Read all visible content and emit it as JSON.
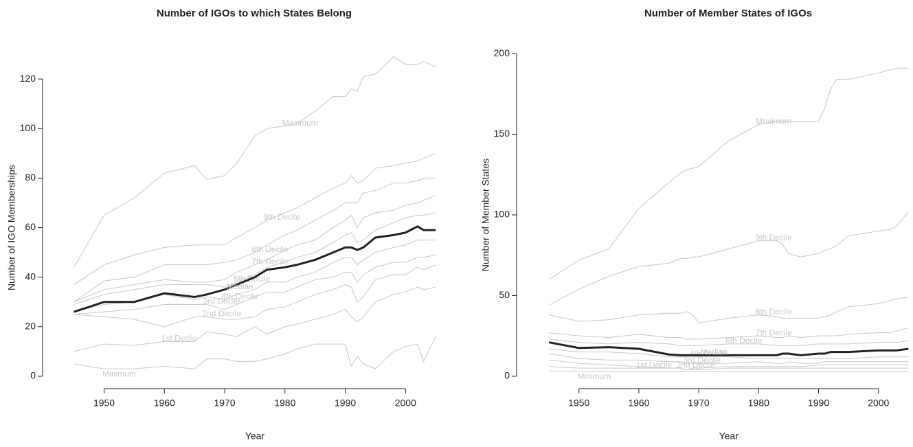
{
  "chart_data": [
    {
      "type": "line",
      "title": "Number of IGOs to which States Belong",
      "x_label": "Year",
      "y_label": "Number of IGO Memberships",
      "x": [
        1945,
        1950,
        1955,
        1960,
        1965,
        1967,
        1970,
        1972,
        1975,
        1977,
        1980,
        1982,
        1985,
        1988,
        1990,
        1991,
        1992,
        1993,
        1995,
        1998,
        2000,
        2002,
        2003,
        2005
      ],
      "xlim": [
        1939.8,
        2006.8
      ],
      "ylim": [
        -5,
        125.3
      ],
      "xticks": [
        1950,
        1960,
        1970,
        1980,
        1990,
        2000
      ],
      "yticks": [
        0,
        20,
        40,
        60,
        80,
        100,
        120
      ],
      "series": [
        {
          "name": "Minimum",
          "color": "#c8c8c8",
          "values": [
            5,
            3,
            3,
            4,
            3,
            7,
            7,
            6,
            6,
            7,
            9,
            11,
            13,
            13,
            13,
            4,
            8,
            5,
            3,
            10,
            12,
            13,
            6,
            16
          ]
        },
        {
          "name": "1st Decile",
          "color": "#c8c8c8",
          "values": [
            10,
            13,
            12.5,
            14,
            14,
            18,
            17,
            16,
            20,
            17,
            20,
            21,
            23,
            25,
            27,
            24,
            22,
            24,
            30,
            33,
            34,
            36,
            35,
            36
          ]
        },
        {
          "name": "2nd Decile",
          "color": "#c8c8c8",
          "values": [
            25,
            24,
            23,
            20,
            24,
            24,
            23,
            23,
            24,
            27,
            28,
            30,
            33,
            35,
            37,
            36,
            30,
            32,
            39,
            41,
            41,
            44,
            43,
            45
          ]
        },
        {
          "name": "3rd Decile",
          "color": "#c8c8c8",
          "values": [
            25,
            26,
            27,
            29,
            29,
            29,
            27,
            29,
            32,
            34,
            34,
            36,
            39,
            40,
            42,
            42,
            38,
            41,
            44,
            46,
            46,
            48,
            48,
            49
          ]
        },
        {
          "name": "4th Decile",
          "color": "#c8c8c8",
          "values": [
            26,
            29,
            30,
            33,
            31,
            32,
            31,
            33,
            35,
            38,
            38,
            40,
            42,
            46,
            48,
            48,
            45,
            47,
            50,
            52,
            53,
            55,
            55,
            55
          ]
        },
        {
          "name": "Median",
          "color": "#222222",
          "values": [
            26,
            30,
            30,
            33.5,
            32,
            33,
            35,
            37,
            40,
            43,
            44,
            45,
            47,
            50,
            52,
            52,
            51,
            52,
            56,
            57,
            58,
            60.5,
            59,
            59
          ]
        },
        {
          "name": "6th Decile",
          "color": "#c8c8c8",
          "values": [
            29,
            33,
            35,
            37,
            37,
            37,
            36,
            38,
            41,
            44,
            46,
            48,
            50,
            54,
            57,
            58,
            54,
            55,
            59,
            62,
            64,
            65,
            65,
            66
          ]
        },
        {
          "name": "7th Decile",
          "color": "#c8c8c8",
          "values": [
            30,
            35,
            37,
            39,
            38,
            38,
            39,
            42,
            45,
            47,
            51,
            53,
            55,
            60,
            63,
            65,
            60,
            64,
            66,
            67,
            69,
            70,
            71,
            73
          ]
        },
        {
          "name": "8th Decile",
          "color": "#c8c8c8",
          "values": [
            30,
            38.5,
            40,
            45,
            45,
            45,
            46,
            47,
            50,
            53,
            57,
            59,
            63,
            67,
            70,
            70,
            70,
            74,
            75,
            78,
            78,
            79,
            80,
            80
          ]
        },
        {
          "name": "9th Decile",
          "color": "#c8c8c8",
          "values": [
            37,
            45,
            49,
            52,
            53,
            53,
            53,
            56,
            60,
            63,
            66,
            68,
            72,
            76,
            78,
            81,
            78,
            79,
            84,
            85,
            86,
            87,
            88,
            90
          ]
        },
        {
          "name": "Maximum",
          "color": "#c8c8c8",
          "values": [
            44,
            65,
            72,
            82,
            85,
            79.5,
            81,
            86,
            97,
            100,
            101,
            102,
            107,
            113,
            113,
            116,
            115,
            121,
            122,
            129,
            126,
            126,
            127,
            125
          ]
        }
      ]
    },
    {
      "type": "line",
      "title": "Number of Member States of IGOs",
      "x_label": "Year",
      "y_label": "Number of Member States",
      "x": [
        1945,
        1950,
        1955,
        1960,
        1965,
        1967,
        1968,
        1969,
        1970,
        1975,
        1980,
        1983,
        1984,
        1985,
        1987,
        1990,
        1991,
        1992,
        1993,
        1995,
        2000,
        2002,
        2003,
        2005
      ],
      "xlim": [
        1939.6,
        2005.3
      ],
      "ylim": [
        -7.7,
        207.7
      ],
      "xticks": [
        1950,
        1960,
        1970,
        1980,
        1990,
        2000
      ],
      "yticks": [
        0,
        50,
        100,
        150,
        200
      ],
      "series": [
        {
          "name": "Minimum",
          "color": "#c8c8c8",
          "values": [
            3,
            3,
            3,
            3,
            3,
            3,
            3,
            3,
            3,
            3,
            3,
            3,
            3,
            3,
            3,
            3,
            3,
            3,
            3,
            3,
            3,
            3,
            3,
            3
          ]
        },
        {
          "name": "1st Decile",
          "color": "#c8c8c8",
          "values": [
            6,
            5,
            5,
            5,
            5,
            5,
            4,
            4,
            4,
            5,
            5,
            5,
            5,
            5,
            5,
            5,
            5,
            5,
            5,
            5,
            5,
            5,
            5,
            5
          ]
        },
        {
          "name": "2nd Decile",
          "color": "#c8c8c8",
          "values": [
            10,
            8,
            7,
            6,
            5,
            5,
            4,
            5,
            5,
            6,
            6,
            6,
            6,
            6,
            6,
            7,
            7,
            7,
            7,
            7,
            7,
            7,
            7,
            7
          ]
        },
        {
          "name": "3rd Decile",
          "color": "#c8c8c8",
          "values": [
            14,
            11,
            10,
            10,
            9,
            9,
            8,
            8,
            8,
            8,
            9,
            8,
            8,
            9,
            8,
            8,
            9,
            9,
            9,
            9,
            9,
            9,
            9,
            9
          ]
        },
        {
          "name": "4th Decile",
          "color": "#c8c8c8",
          "values": [
            17,
            15,
            15,
            14,
            12,
            12,
            12,
            12,
            12,
            12,
            11,
            11,
            11,
            11,
            11,
            11,
            11,
            11,
            11,
            11,
            12,
            12,
            12,
            12
          ]
        },
        {
          "name": "Median",
          "color": "#222222",
          "values": [
            21,
            17.5,
            18,
            17,
            13.5,
            13,
            13,
            13,
            13,
            13,
            13,
            13,
            14,
            14,
            13,
            14,
            14,
            15,
            15,
            15,
            16,
            16,
            16,
            17
          ]
        },
        {
          "name": "6th Decile",
          "color": "#c8c8c8",
          "values": [
            23,
            21,
            20,
            21,
            20,
            19,
            19,
            19,
            19,
            20,
            20,
            19,
            19,
            19,
            19,
            20,
            20,
            20,
            20,
            20,
            21,
            21,
            21,
            22
          ]
        },
        {
          "name": "7th Decile",
          "color": "#c8c8c8",
          "values": [
            27,
            25,
            24,
            26,
            24,
            24,
            23,
            23,
            23,
            24,
            25,
            24,
            24,
            25,
            24,
            25,
            25,
            25,
            25,
            26,
            27,
            27,
            28,
            30
          ]
        },
        {
          "name": "8th Decile",
          "color": "#c8c8c8",
          "values": [
            38,
            34,
            35,
            38,
            39,
            39,
            40,
            38,
            33,
            36,
            38,
            37,
            36,
            36,
            36,
            36,
            37,
            38,
            40,
            43,
            45,
            47,
            48,
            49
          ]
        },
        {
          "name": "9th Decile",
          "color": "#c8c8c8",
          "values": [
            44,
            54,
            62,
            68,
            70,
            73,
            73,
            74,
            74,
            79,
            84,
            84,
            82,
            76,
            74,
            76,
            78,
            79,
            81,
            87,
            90,
            91,
            93,
            102
          ]
        },
        {
          "name": "Maximum",
          "color": "#c8c8c8",
          "values": [
            60,
            72,
            79,
            104,
            120,
            126,
            128,
            129,
            130,
            146,
            156,
            158,
            158,
            158,
            158,
            158,
            166,
            178,
            184,
            184,
            188,
            190,
            191,
            191
          ]
        }
      ]
    }
  ]
}
